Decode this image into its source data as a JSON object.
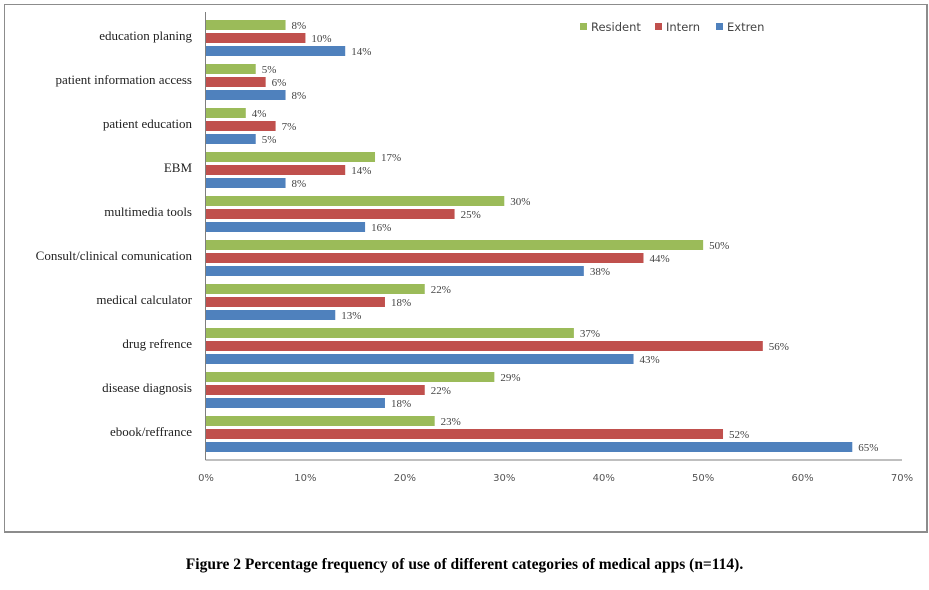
{
  "chart_data": {
    "type": "bar",
    "orientation": "horizontal",
    "title": "",
    "xlabel": "",
    "ylabel": "",
    "xlim": [
      0,
      70
    ],
    "x_ticks": [
      0,
      10,
      20,
      30,
      40,
      50,
      60,
      70
    ],
    "x_tick_labels": [
      "0%",
      "10%",
      "20%",
      "30%",
      "40%",
      "50%",
      "60%",
      "70%"
    ],
    "value_suffix": "%",
    "grid": false,
    "legend_position": "top-right",
    "categories": [
      "education planing",
      "patient information access",
      "patient education",
      "EBM",
      "multimedia tools",
      "Consult/clinical comunication",
      "medical calculator",
      "drug refrence",
      "disease diagnosis",
      "ebook/reffrance"
    ],
    "series": [
      {
        "name": "Resident",
        "color": "#9bbb59",
        "values": [
          8,
          5,
          4,
          17,
          30,
          50,
          22,
          37,
          29,
          23
        ]
      },
      {
        "name": "Intern",
        "color": "#c0504d",
        "values": [
          10,
          6,
          7,
          14,
          25,
          44,
          18,
          56,
          22,
          52
        ]
      },
      {
        "name": "Extren",
        "color": "#4f81bd",
        "values": [
          14,
          8,
          5,
          8,
          16,
          38,
          13,
          43,
          18,
          65
        ]
      }
    ]
  },
  "caption": "Figure 2 Percentage frequency of use of different categories of medical apps (n=114)."
}
